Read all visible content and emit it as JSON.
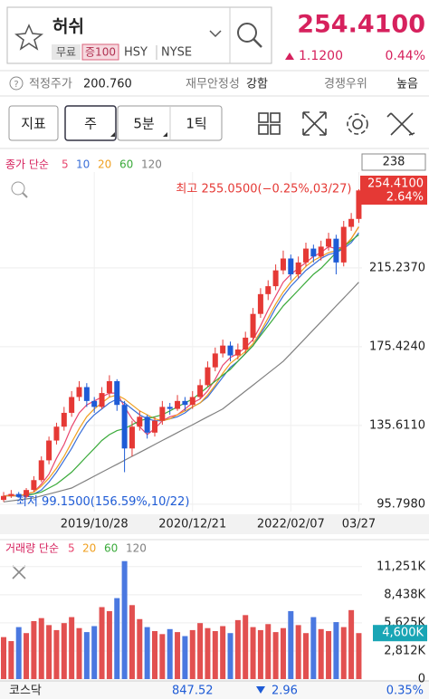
{
  "header": {
    "name": "허쉬",
    "badges": [
      "무료",
      "증100"
    ],
    "ticker": "HSY",
    "exchange": "NYSE",
    "price": "254.4100",
    "change": "1.1200",
    "change_pct": "0.44%"
  },
  "info_row": [
    {
      "label": "적정주가",
      "value": "200.760"
    },
    {
      "label": "재무안정성",
      "value": "강함"
    },
    {
      "label": "경쟁우위",
      "value": "높음"
    }
  ],
  "toolbar": [
    "지표",
    "주",
    "5분",
    "1틱"
  ],
  "chart_data": [
    {
      "type": "candlestick",
      "legend_title": "종가 단순",
      "top_box": "238",
      "categories": [
        null,
        null,
        null,
        null,
        null,
        null,
        null,
        null,
        null,
        null,
        null,
        null,
        "2019/10/28",
        null,
        null,
        null,
        null,
        null,
        null,
        null,
        null,
        null,
        null,
        null,
        null,
        "2020/12/21",
        null,
        null,
        null,
        null,
        null,
        null,
        null,
        null,
        null,
        null,
        null,
        null,
        "2022/02/07",
        null,
        null,
        null,
        null,
        null,
        null,
        null,
        null,
        "03/27"
      ],
      "candles": [
        [
          98,
          102,
          97,
          100
        ],
        [
          100,
          103,
          99,
          101
        ],
        [
          101,
          102,
          99.15,
          99.5
        ],
        [
          99.5,
          104,
          99,
          103
        ],
        [
          103,
          110,
          102,
          108
        ],
        [
          108,
          120,
          107,
          118
        ],
        [
          118,
          130,
          116,
          128
        ],
        [
          128,
          137,
          126,
          135
        ],
        [
          135,
          145,
          133,
          142
        ],
        [
          142,
          153,
          140,
          150
        ],
        [
          150,
          158,
          148,
          155
        ],
        [
          155,
          157,
          145,
          148
        ],
        [
          148,
          150,
          142,
          145
        ],
        [
          145,
          155,
          144,
          152
        ],
        [
          152,
          161,
          150,
          158
        ],
        [
          158,
          159,
          143,
          146
        ],
        [
          146,
          148,
          112,
          124
        ],
        [
          124,
          138,
          120,
          135
        ],
        [
          135,
          143,
          133,
          140
        ],
        [
          140,
          141,
          129,
          132
        ],
        [
          132,
          140,
          130,
          138
        ],
        [
          138,
          148,
          136,
          145
        ],
        [
          145,
          147,
          141,
          144
        ],
        [
          144,
          151,
          143,
          148
        ],
        [
          148,
          150,
          143,
          146
        ],
        [
          146,
          153,
          144,
          150
        ],
        [
          150,
          159,
          149,
          156
        ],
        [
          156,
          168,
          155,
          165
        ],
        [
          165,
          175,
          163,
          172
        ],
        [
          172,
          179,
          170,
          176
        ],
        [
          176,
          178,
          168,
          171
        ],
        [
          171,
          177,
          169,
          174
        ],
        [
          174,
          183,
          172,
          180
        ],
        [
          180,
          195,
          178,
          192
        ],
        [
          192,
          205,
          190,
          202
        ],
        [
          202,
          209,
          199,
          206
        ],
        [
          206,
          217,
          204,
          214
        ],
        [
          214,
          224,
          212,
          220
        ],
        [
          220,
          222,
          209,
          212
        ],
        [
          212,
          221,
          210,
          218
        ],
        [
          218,
          228,
          216,
          225
        ],
        [
          225,
          227,
          218,
          221
        ],
        [
          221,
          229,
          219,
          226
        ],
        [
          226,
          233,
          224,
          230
        ],
        [
          230,
          232,
          212,
          218
        ],
        [
          218,
          239,
          216,
          236
        ],
        [
          236,
          243,
          234,
          240
        ],
        [
          240,
          255.05,
          238,
          254.41
        ]
      ],
      "up_color": "#e53935",
      "down_color": "#1e5bd6",
      "series": [
        {
          "name": "5",
          "color": "#e8466e",
          "values": [
            100,
            100.5,
            100,
            101,
            102,
            106,
            111,
            119,
            126,
            135,
            142,
            146,
            148,
            150,
            152,
            152,
            145,
            139,
            135,
            131,
            134,
            138,
            140,
            141,
            144,
            147,
            149,
            153,
            159,
            166,
            170,
            172,
            175,
            179,
            186,
            194,
            201,
            208,
            212,
            215,
            218,
            221,
            223,
            226,
            225,
            226,
            230,
            236
          ]
        },
        {
          "name": "10",
          "color": "#3a6fd8",
          "values": [
            100,
            100,
            100,
            100.5,
            101,
            103,
            107,
            112,
            118,
            124,
            131,
            137,
            141,
            144,
            147,
            149,
            147,
            144,
            141,
            139,
            138,
            138,
            139,
            140,
            142,
            145,
            147,
            150,
            155,
            160,
            165,
            168,
            172,
            176,
            182,
            188,
            195,
            201,
            206,
            210,
            214,
            217,
            220,
            222,
            223,
            225,
            228,
            233
          ]
        },
        {
          "name": "20",
          "color": "#f0a020",
          "values": [
            100,
            100,
            100,
            101,
            102,
            105,
            109,
            114,
            120,
            127,
            134,
            140,
            144,
            147,
            150,
            151,
            149,
            146,
            143,
            141,
            139,
            138,
            139,
            141,
            143,
            145,
            147,
            151,
            156,
            162,
            167,
            170,
            173,
            177,
            183,
            190,
            197,
            203,
            208,
            212,
            216,
            219,
            221,
            223,
            224,
            226,
            230,
            236
          ]
        },
        {
          "name": "60",
          "color": "#3aaa3a",
          "values": [
            null,
            null,
            null,
            100,
            101,
            102,
            104,
            106,
            109,
            112,
            116,
            120,
            124,
            128,
            131,
            133,
            134,
            136,
            138,
            139,
            140,
            141,
            143,
            145,
            147,
            149,
            152,
            155,
            158,
            161,
            164,
            168,
            172,
            176,
            181,
            186,
            191,
            196,
            200,
            204,
            208,
            212,
            215,
            219,
            223,
            226,
            229,
            232
          ]
        },
        {
          "name": "120",
          "color": "#808080",
          "values": [
            97,
            97.5,
            98,
            98.5,
            99,
            100,
            101,
            102,
            103,
            104,
            106,
            108,
            110,
            112,
            114,
            116,
            118,
            120,
            122,
            124,
            126,
            128,
            130,
            132,
            134,
            136,
            138,
            140,
            142,
            144,
            147,
            150,
            153,
            156,
            159,
            162,
            165,
            168,
            172,
            176,
            180,
            184,
            188,
            192,
            196,
            200,
            204,
            208
          ]
        }
      ],
      "ylim": [
        92.1,
        263.7
      ],
      "yticks": [
        {
          "value": 95.798,
          "label": "95.7980"
        },
        {
          "value": 135.611,
          "label": "135.6110"
        },
        {
          "value": 175.424,
          "label": "175.4240"
        },
        {
          "value": 215.237,
          "label": "215.2370"
        }
      ],
      "annotations": [
        {
          "text": "최고 255.0500(−0.25%,03/27)",
          "color": "#e53935"
        },
        {
          "text": "최저 99.1500(156.59%,10/22)",
          "color": "#1e5bd6"
        }
      ],
      "last_price_label": "254.4100",
      "last_change_label": "2.64%"
    },
    {
      "type": "bar",
      "legend_title": "거래량 단순",
      "legend": [
        {
          "name": "5",
          "color": "#e8466e"
        },
        {
          "name": "20",
          "color": "#f0a020"
        },
        {
          "name": "60",
          "color": "#3aaa3a"
        },
        {
          "name": "120",
          "color": "#808080"
        }
      ],
      "values": [
        4200,
        3800,
        5200,
        4600,
        5800,
        6100,
        5400,
        4900,
        5600,
        6200,
        5100,
        4700,
        5300,
        7200,
        6800,
        8100,
        11800,
        7400,
        6000,
        5200,
        4800,
        4500,
        5000,
        4700,
        4300,
        4900,
        5600,
        5100,
        4800,
        5300,
        4600,
        5900,
        6400,
        5200,
        4900,
        5500,
        4700,
        5100,
        6800,
        5400,
        4600,
        6200,
        5000,
        4800,
        5700,
        5200,
        6900,
        4600
      ],
      "ylim": [
        0,
        12500
      ],
      "yticks": [
        0,
        {
          "value": 2812,
          "label": "2,812K"
        },
        {
          "value": 5625,
          "label": "5,625K"
        },
        {
          "value": 8438,
          "label": "8,438K"
        },
        {
          "value": 11251,
          "label": "11,251K"
        }
      ],
      "last_value_label": "4,600K"
    }
  ],
  "footer": {
    "index": "코스닥",
    "value": "847.52",
    "change": "2.96",
    "change_pct": "0.35%"
  }
}
